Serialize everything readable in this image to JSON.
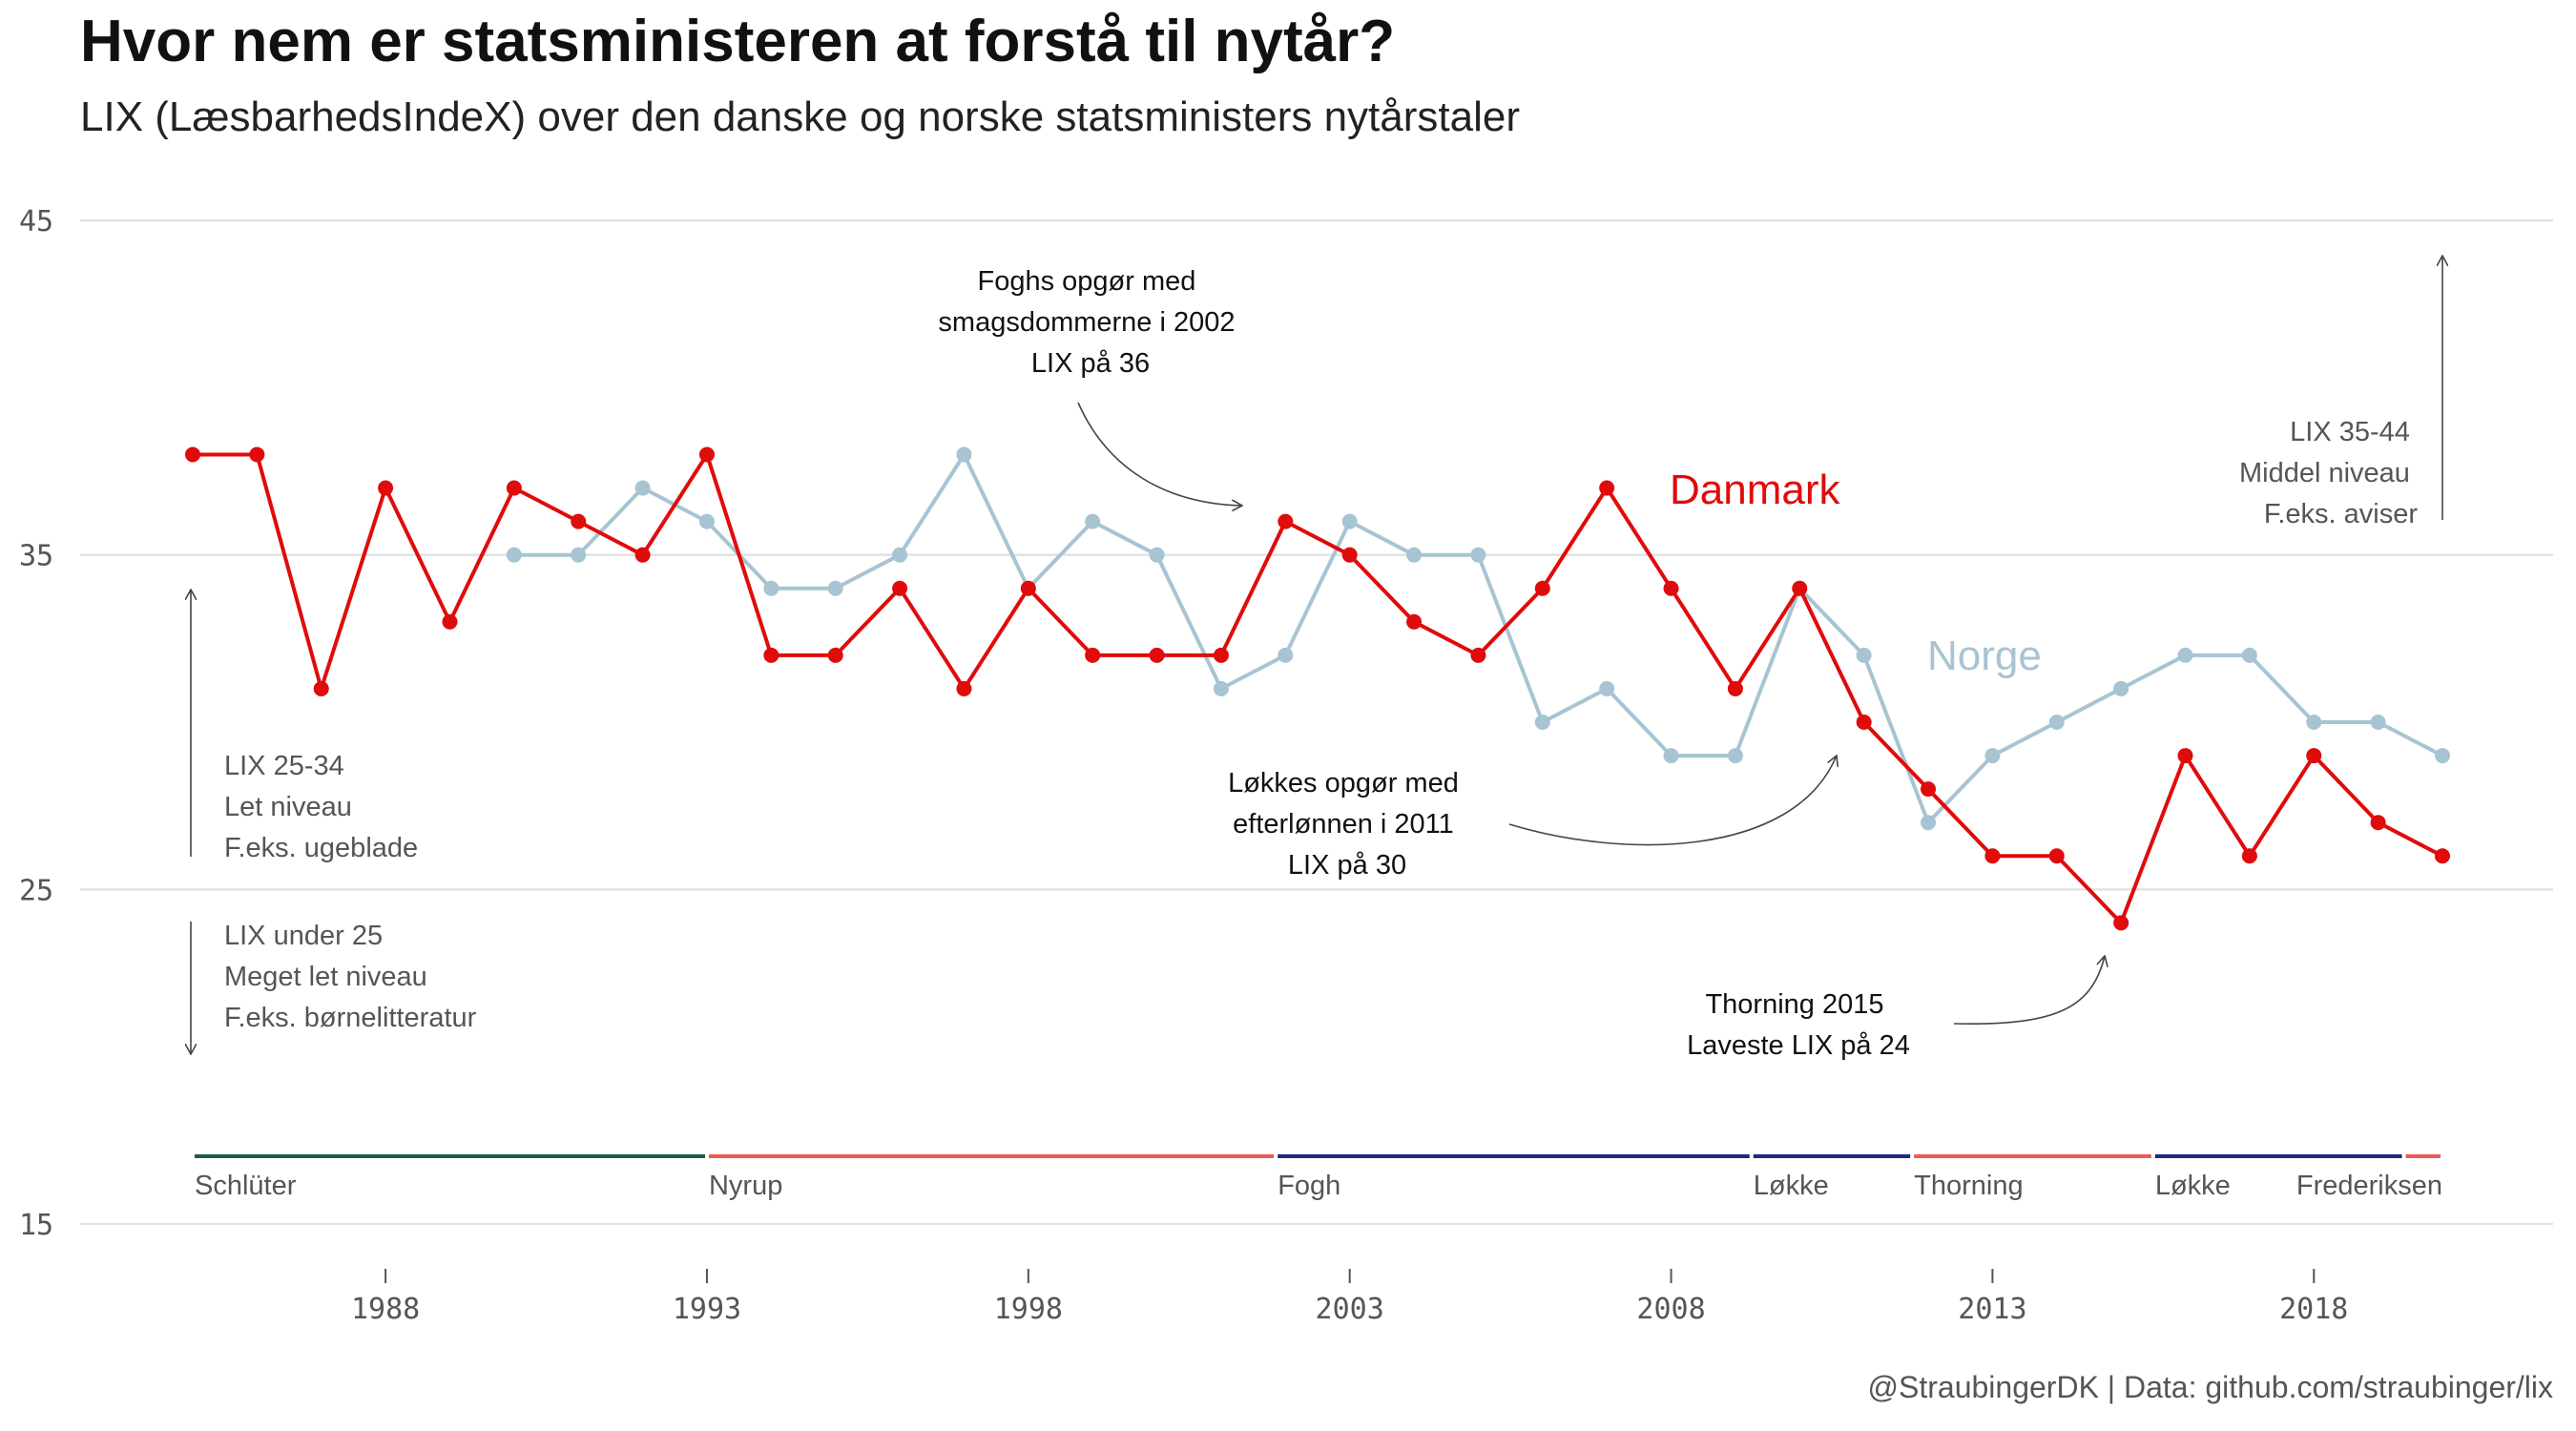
{
  "title": "Hvor nem er statsministeren at forstå til nytår?",
  "subtitle": "LIX (LæsbarhedsIndeX) over den danske og norske statsministers nytårstaler",
  "caption": "@StraubingerDK | Data: github.com/straubinger/lix",
  "chart_data": {
    "type": "line",
    "xlim": [
      1984,
      2020.5
    ],
    "ylim": [
      15,
      45
    ],
    "x_ticks": [
      1988,
      1993,
      1998,
      2003,
      2008,
      2013,
      2018
    ],
    "y_ticks": [
      15,
      25,
      35,
      45
    ],
    "grid": "horizontal",
    "series": [
      {
        "name": "Danmark",
        "color": "#e00b0b",
        "x": [
          1985,
          1986,
          1987,
          1988,
          1989,
          1990,
          1991,
          1992,
          1993,
          1994,
          1995,
          1996,
          1997,
          1998,
          1999,
          2000,
          2001,
          2002,
          2003,
          2004,
          2005,
          2006,
          2007,
          2008,
          2009,
          2010,
          2011,
          2012,
          2013,
          2014,
          2015,
          2016,
          2017,
          2018,
          2019,
          2020
        ],
        "values": [
          38,
          38,
          31,
          37,
          33,
          37,
          36,
          35,
          38,
          32,
          32,
          34,
          31,
          34,
          32,
          32,
          32,
          36,
          35,
          33,
          32,
          34,
          37,
          34,
          31,
          34,
          30,
          28,
          26,
          26,
          24,
          29,
          26,
          29,
          27,
          26
        ]
      },
      {
        "name": "Norge",
        "color": "#a7c4d2",
        "x": [
          1990,
          1991,
          1992,
          1993,
          1994,
          1995,
          1996,
          1997,
          1998,
          1999,
          2000,
          2001,
          2002,
          2003,
          2004,
          2005,
          2006,
          2007,
          2008,
          2009,
          2010,
          2011,
          2012,
          2013,
          2014,
          2015,
          2016,
          2017,
          2018,
          2019,
          2020
        ],
        "values": [
          35,
          35,
          37,
          36,
          34,
          34,
          35,
          38,
          34,
          36,
          35,
          31,
          32,
          36,
          35,
          35,
          30,
          31,
          29,
          29,
          34,
          32,
          27,
          29,
          30,
          31,
          32,
          32,
          30,
          30,
          29
        ]
      }
    ],
    "prime_ministers": [
      {
        "name": "Schlüter",
        "start": 1985,
        "end": 1993,
        "color": "#1b5e3f"
      },
      {
        "name": "Nyrup",
        "start": 1993,
        "end": 2001.85,
        "color": "#ee5a54"
      },
      {
        "name": "Fogh",
        "start": 2001.85,
        "end": 2009.25,
        "color": "#1a2b80"
      },
      {
        "name": "Løkke",
        "start": 2009.25,
        "end": 2011.75,
        "color": "#1a2b80"
      },
      {
        "name": "Thorning",
        "start": 2011.75,
        "end": 2015.5,
        "color": "#ee5a54"
      },
      {
        "name": "Løkke",
        "start": 2015.5,
        "end": 2019.4,
        "color": "#1a2b80"
      },
      {
        "name": "Frederiksen",
        "start": 2019.4,
        "end": 2020,
        "color": "#ee5a54"
      }
    ],
    "annotations": [
      {
        "lines": [
          "Foghs opgør med",
          "smagsdommerne i 2002",
          "LIX på 36"
        ]
      },
      {
        "lines": [
          "Løkkes opgør med",
          "efterlønnen i 2011",
          "LIX på 30"
        ]
      },
      {
        "lines": [
          "Thorning 2015",
          "Laveste LIX på 24"
        ]
      }
    ],
    "level_notes": [
      {
        "lines": [
          "LIX 35-44",
          "Middel niveau",
          "F.eks. aviser"
        ]
      },
      {
        "lines": [
          "LIX 25-34",
          "Let niveau",
          "F.eks. ugeblade"
        ]
      },
      {
        "lines": [
          "LIX under 25",
          "Meget let niveau",
          "F.eks. børnelitteratur"
        ]
      }
    ]
  }
}
